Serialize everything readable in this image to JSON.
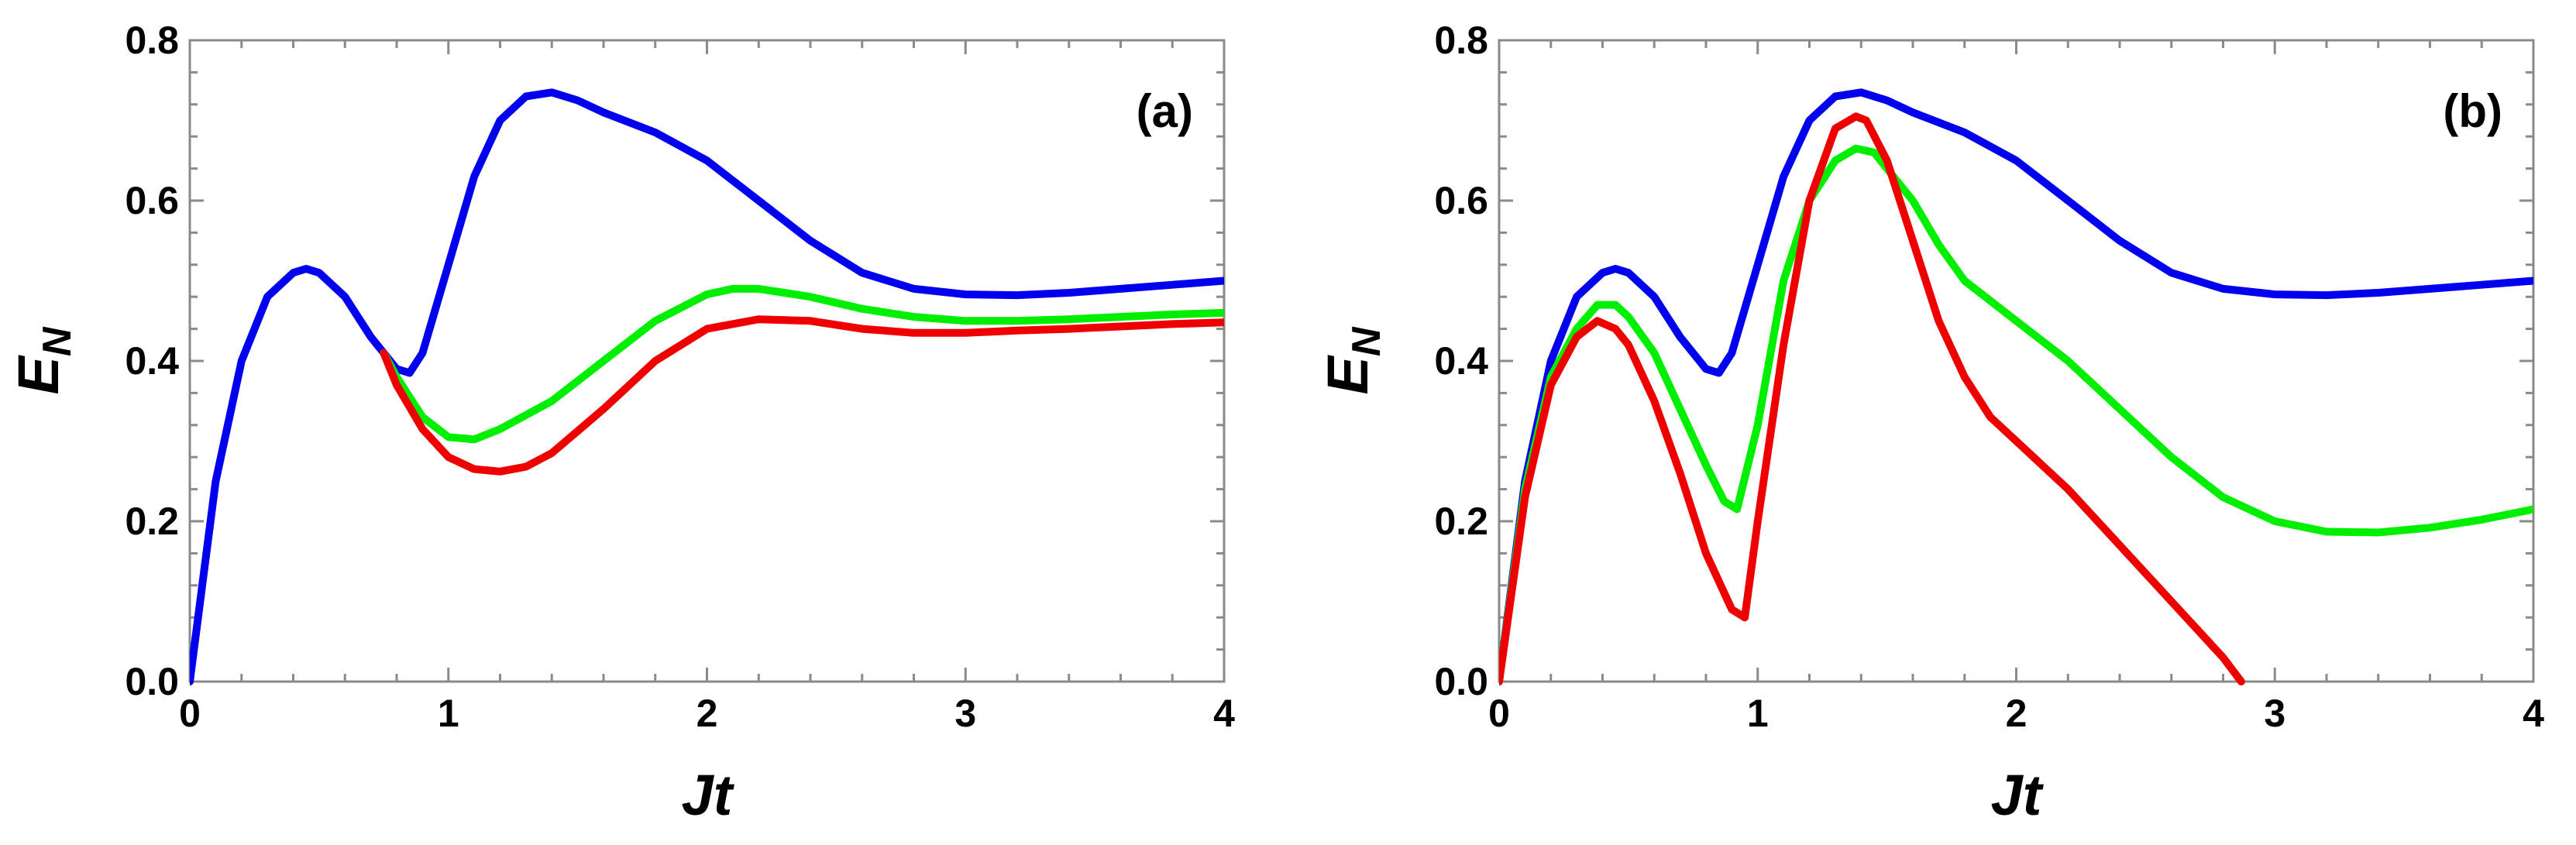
{
  "chart_data": [
    {
      "type": "line",
      "panel_label": "(a)",
      "xlabel": "Jt",
      "ylabel": "E",
      "ylabel_subscript": "N",
      "xlim": [
        0,
        4
      ],
      "ylim": [
        0,
        0.8
      ],
      "xticks": [
        "0",
        "1",
        "2",
        "3",
        "4"
      ],
      "yticks": [
        "0.0",
        "0.2",
        "0.4",
        "0.6",
        "0.8"
      ],
      "series": [
        {
          "name": "blue",
          "color": "#0000ee",
          "x": [
            0,
            0.1,
            0.2,
            0.3,
            0.4,
            0.45,
            0.5,
            0.6,
            0.7,
            0.8,
            0.85,
            0.9,
            1.0,
            1.1,
            1.2,
            1.3,
            1.4,
            1.5,
            1.6,
            1.8,
            2.0,
            2.2,
            2.4,
            2.6,
            2.8,
            3.0,
            3.2,
            3.4,
            3.6,
            3.8,
            4.0
          ],
          "y": [
            0,
            0.25,
            0.4,
            0.48,
            0.51,
            0.515,
            0.51,
            0.48,
            0.43,
            0.39,
            0.385,
            0.41,
            0.52,
            0.63,
            0.7,
            0.73,
            0.735,
            0.725,
            0.71,
            0.685,
            0.65,
            0.6,
            0.55,
            0.51,
            0.49,
            0.483,
            0.482,
            0.485,
            0.49,
            0.495,
            0.5
          ]
        },
        {
          "name": "green",
          "color": "#00ee00",
          "x": [
            0.75,
            0.8,
            0.9,
            1.0,
            1.1,
            1.2,
            1.4,
            1.6,
            1.8,
            2.0,
            2.1,
            2.2,
            2.4,
            2.6,
            2.8,
            3.0,
            3.2,
            3.4,
            3.6,
            3.8,
            4.0
          ],
          "y": [
            0.41,
            0.38,
            0.33,
            0.305,
            0.302,
            0.315,
            0.35,
            0.4,
            0.45,
            0.483,
            0.49,
            0.49,
            0.48,
            0.465,
            0.455,
            0.45,
            0.45,
            0.452,
            0.455,
            0.458,
            0.46
          ]
        },
        {
          "name": "red",
          "color": "#ee0000",
          "x": [
            0.75,
            0.8,
            0.9,
            1.0,
            1.1,
            1.2,
            1.3,
            1.4,
            1.6,
            1.8,
            2.0,
            2.2,
            2.4,
            2.6,
            2.8,
            3.0,
            3.2,
            3.4,
            3.6,
            3.8,
            4.0
          ],
          "y": [
            0.41,
            0.37,
            0.315,
            0.28,
            0.265,
            0.262,
            0.268,
            0.285,
            0.34,
            0.4,
            0.44,
            0.452,
            0.45,
            0.44,
            0.435,
            0.435,
            0.438,
            0.44,
            0.443,
            0.446,
            0.448
          ]
        }
      ]
    },
    {
      "type": "line",
      "panel_label": "(b)",
      "xlabel": "Jt",
      "ylabel": "E",
      "ylabel_subscript": "N",
      "xlim": [
        0,
        4
      ],
      "ylim": [
        0,
        0.8
      ],
      "xticks": [
        "0",
        "1",
        "2",
        "3",
        "4"
      ],
      "yticks": [
        "0.0",
        "0.2",
        "0.4",
        "0.6",
        "0.8"
      ],
      "series": [
        {
          "name": "blue",
          "color": "#0000ee",
          "x": [
            0,
            0.1,
            0.2,
            0.3,
            0.4,
            0.45,
            0.5,
            0.6,
            0.7,
            0.8,
            0.85,
            0.9,
            1.0,
            1.1,
            1.2,
            1.3,
            1.4,
            1.5,
            1.6,
            1.8,
            2.0,
            2.2,
            2.4,
            2.6,
            2.8,
            3.0,
            3.2,
            3.4,
            3.6,
            3.8,
            4.0
          ],
          "y": [
            0,
            0.25,
            0.4,
            0.48,
            0.51,
            0.515,
            0.51,
            0.48,
            0.43,
            0.39,
            0.385,
            0.41,
            0.52,
            0.63,
            0.7,
            0.73,
            0.735,
            0.725,
            0.71,
            0.685,
            0.65,
            0.6,
            0.55,
            0.51,
            0.49,
            0.483,
            0.482,
            0.485,
            0.49,
            0.495,
            0.5
          ]
        },
        {
          "name": "green",
          "color": "#00ee00",
          "x": [
            0,
            0.1,
            0.2,
            0.3,
            0.38,
            0.45,
            0.5,
            0.6,
            0.7,
            0.8,
            0.87,
            0.92,
            1.0,
            1.1,
            1.2,
            1.3,
            1.38,
            1.45,
            1.5,
            1.6,
            1.7,
            1.8,
            2.0,
            2.2,
            2.4,
            2.6,
            2.8,
            3.0,
            3.2,
            3.4,
            3.6,
            3.8,
            4.0
          ],
          "y": [
            0,
            0.24,
            0.38,
            0.44,
            0.47,
            0.47,
            0.455,
            0.41,
            0.34,
            0.27,
            0.225,
            0.215,
            0.32,
            0.5,
            0.6,
            0.65,
            0.665,
            0.66,
            0.64,
            0.6,
            0.545,
            0.5,
            0.45,
            0.4,
            0.34,
            0.28,
            0.23,
            0.2,
            0.187,
            0.186,
            0.192,
            0.202,
            0.215
          ]
        },
        {
          "name": "red",
          "color": "#ee0000",
          "x": [
            0,
            0.1,
            0.2,
            0.3,
            0.38,
            0.45,
            0.5,
            0.6,
            0.7,
            0.8,
            0.9,
            0.95,
            1.0,
            1.1,
            1.2,
            1.3,
            1.38,
            1.42,
            1.5,
            1.6,
            1.7,
            1.8,
            1.9,
            2.0,
            2.2,
            2.4,
            2.6,
            2.8,
            2.87
          ],
          "y": [
            0,
            0.23,
            0.37,
            0.43,
            0.45,
            0.44,
            0.42,
            0.35,
            0.26,
            0.16,
            0.09,
            0.08,
            0.2,
            0.42,
            0.6,
            0.69,
            0.705,
            0.7,
            0.65,
            0.55,
            0.45,
            0.38,
            0.33,
            0.3,
            0.24,
            0.17,
            0.1,
            0.03,
            0
          ]
        }
      ]
    }
  ]
}
